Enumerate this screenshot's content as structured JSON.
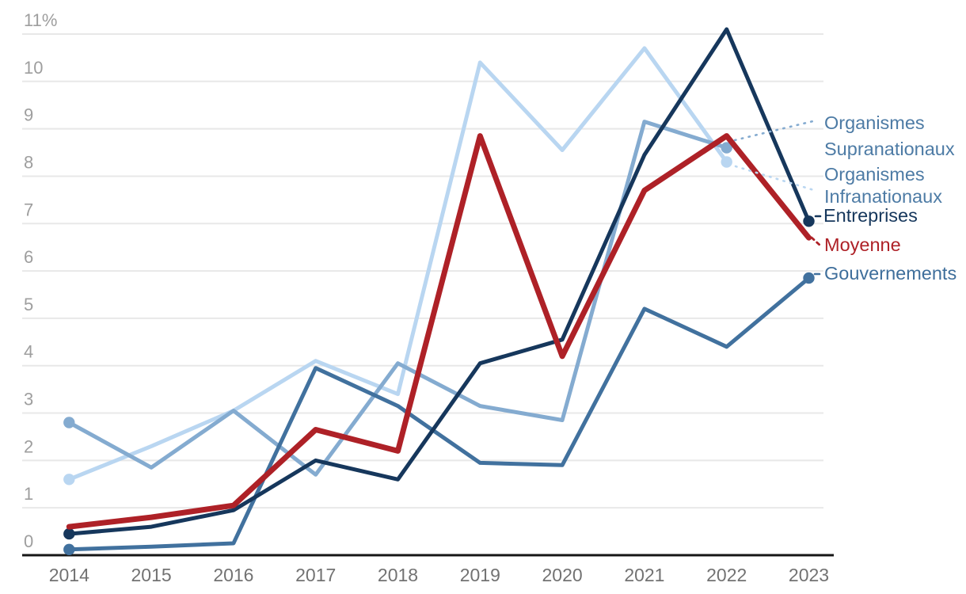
{
  "chart_data": {
    "type": "line",
    "title": "",
    "xlabel": "",
    "ylabel": "",
    "categories": [
      "2014",
      "2015",
      "2016",
      "2017",
      "2018",
      "2019",
      "2020",
      "2021",
      "2022",
      "2023"
    ],
    "y_axis": {
      "min": 0,
      "max": 11,
      "unit": "%",
      "tick_labels": [
        "0",
        "1",
        "2",
        "3",
        "4",
        "5",
        "6",
        "7",
        "8",
        "9",
        "10",
        "11%"
      ]
    },
    "grid": true,
    "legend_position": "right",
    "axis_colors": {
      "y_tick_label": "#9e9e9e",
      "x_tick_label": "#727272",
      "gridline": "#e8e8e8",
      "axis_line": "#161616"
    },
    "series": [
      {
        "id": "organismes_infranationaux",
        "name": "Organismes Infranationaux",
        "label_lines": [
          "Organismes",
          "Infranationaux"
        ],
        "color": "#b9d6f1",
        "label_color": "#4d7ba5",
        "width": 5,
        "start_dot": true,
        "end_dot": true,
        "values": [
          1.6,
          2.3,
          3.05,
          4.1,
          3.4,
          10.4,
          8.55,
          10.7,
          8.3,
          null
        ]
      },
      {
        "id": "organismes_supranationaux",
        "name": "Organismes Supranationaux",
        "label_lines": [
          "Organismes",
          "Supranationaux"
        ],
        "color": "#84abd0",
        "label_color": "#4d7ba5",
        "width": 5,
        "start_dot": true,
        "end_dot": true,
        "values": [
          2.8,
          1.85,
          3.05,
          1.7,
          4.05,
          3.15,
          2.85,
          9.15,
          8.6,
          null
        ]
      },
      {
        "id": "gouvernements",
        "name": "Gouvernements",
        "label_lines": [
          "Gouvernements"
        ],
        "color": "#41719e",
        "label_color": "#3e6e9b",
        "width": 5,
        "start_dot": true,
        "end_dot": true,
        "values": [
          0.12,
          0.18,
          0.25,
          3.95,
          3.15,
          1.95,
          1.9,
          5.2,
          4.4,
          5.85
        ]
      },
      {
        "id": "entreprises",
        "name": "Entreprises",
        "label_lines": [
          "Entreprises"
        ],
        "color": "#16375c",
        "label_color": "#16375c",
        "width": 5,
        "start_dot": true,
        "end_dot": true,
        "values": [
          0.45,
          0.6,
          0.95,
          2.0,
          1.6,
          4.05,
          4.55,
          8.45,
          11.1,
          7.05
        ]
      },
      {
        "id": "moyenne",
        "name": "Moyenne",
        "label_lines": [
          "Moyenne"
        ],
        "color": "#ae2127",
        "label_color": "#ae2127",
        "width": 7,
        "start_dot": false,
        "end_dot": false,
        "values": [
          0.6,
          0.8,
          1.05,
          2.65,
          2.2,
          8.85,
          4.2,
          7.7,
          8.85,
          6.7
        ]
      }
    ]
  }
}
